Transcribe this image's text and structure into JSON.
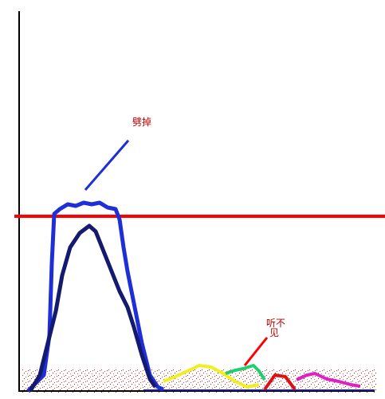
{
  "annotations": [
    {
      "text": "劈掉"
    },
    {
      "lines": [
        "听不",
        "见"
      ]
    }
  ]
}
